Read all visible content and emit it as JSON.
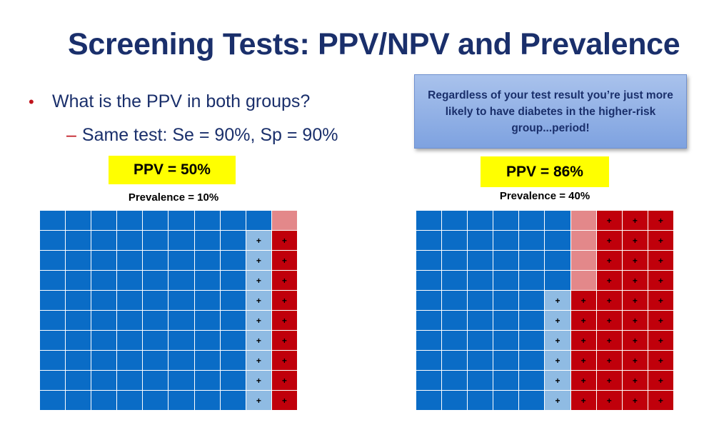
{
  "slide": {
    "title": "Screening Tests: PPV/NPV and Prevalence",
    "bullet": "What is the PPV in both groups?",
    "bullet_marker": "•",
    "sub_bullet_dash": "–",
    "sub_bullet": "Same test: Se = 90%, Sp = 90%",
    "callout": "Regardless of your test result you’re just more likely to have diabetes in the higher-risk group...period!"
  },
  "colors": {
    "title": "#1a2f6b",
    "bullet_marker": "#c0141c",
    "badge": "#ffff00",
    "true_negative": "#0a6cc6",
    "false_positive": "#8fbbe3",
    "true_positive": "#c0000b",
    "false_negative": "#e3888a"
  },
  "panels": [
    {
      "ppv": "PPV = 50%",
      "prevalence": "Prevalence = 10%",
      "plus_symbol": "+",
      "grid_rows": [
        "BBBBBBBBBL",
        "BBBBBBBBPR",
        "BBBBBBBBPR",
        "BBBBBBBBPR",
        "BBBBBBBBPR",
        "BBBBBBBBPR",
        "BBBBBBBBPR",
        "BBBBBBBBPR",
        "BBBBBBBBPR",
        "BBBBBBBBPR"
      ]
    },
    {
      "ppv": "PPV = 86%",
      "prevalence": "Prevalence = 40%",
      "plus_symbol": "+",
      "grid_rows": [
        "BBBBBBLRRR",
        "BBBBBBLRRR",
        "BBBBBBLRRR",
        "BBBBBBLRRR",
        "BBBBBPRRRR",
        "BBBBBPRRRR",
        "BBBBBPRRRR",
        "BBBBBPRRRR",
        "BBBBBPRRRR",
        "BBBBBPRRRR"
      ]
    }
  ]
}
